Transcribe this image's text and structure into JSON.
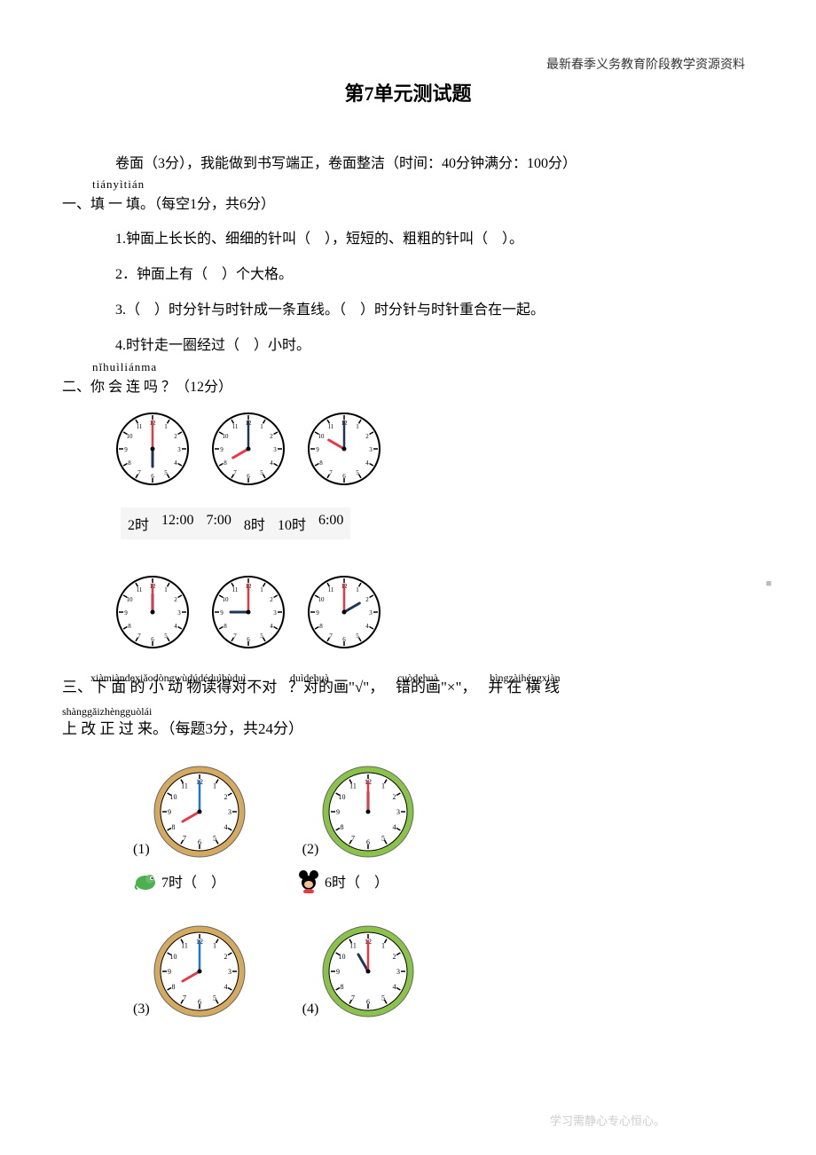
{
  "header_note": "最新春季义务教育阶段教学资源资料",
  "title": "第7单元测试题",
  "intro": "卷面（3分），我能做到书写端正，卷面整洁（时间：40分钟满分：100分）",
  "section1": {
    "pinyin": "tiányìtián",
    "heading": "一、填 一 填。（每空1分，共6分）",
    "q1": "1.钟面上长长的、细细的针叫（　），短短的、粗粗的针叫（　）。",
    "q2": "2．钟面上有（　）个大格。",
    "q3": "3.（　）时分针与时针成一条直线。（　）时分针与时针重合在一起。",
    "q4": "4.时针走一圈经过（　）小时。"
  },
  "section2": {
    "pinyin": "nǐhuìliánma",
    "heading": "二、你 会 连 吗 ？（12分）",
    "clocks_row1": [
      {
        "hour": 6,
        "minute": 0,
        "minute_color": "#e63946",
        "hour_color": "#1d3557"
      },
      {
        "hour": 8,
        "minute": 0,
        "minute_color": "#1d3557",
        "hour_color": "#e63946"
      },
      {
        "hour": 10,
        "minute": 0,
        "minute_color": "#1d3557",
        "hour_color": "#e63946"
      }
    ],
    "time_labels": [
      "2时",
      "12:00",
      "7:00",
      "8时",
      "10时",
      "6:00"
    ],
    "clocks_row2": [
      {
        "hour": 12,
        "minute": 0,
        "minute_color": "#e63946",
        "hour_color": "#1d3557"
      },
      {
        "hour": 9,
        "minute": 0,
        "minute_color": "#e63946",
        "hour_color": "#1d3557"
      },
      {
        "hour": 2,
        "minute": 0,
        "minute_color": "#e63946",
        "hour_color": "#1d3557"
      }
    ]
  },
  "section3": {
    "heading_parts": [
      {
        "pinyin": "xiàmiàndexiǎodòngwùdúdéduìbùduì",
        "text": "三、下 面 的 小 动 物读得对不对"
      },
      {
        "pinyin": "duìdehuà",
        "text": "？对的画\"√\"，"
      },
      {
        "pinyin": "cuòdehuà",
        "text": "错的画\"×\"，"
      },
      {
        "pinyin": "bìngzàihéngxiàn",
        "text": "并 在 横 线"
      }
    ],
    "line2_pinyin": "shànggǎizhèngguòlái",
    "line2_text": "上 改 正 过 来。（每题3分，共24分）",
    "items": [
      {
        "num": "(1)",
        "clock": {
          "hour": 8,
          "minute": 0,
          "rim": "#d4a960",
          "minute_color": "#1976d2",
          "hour_color": "#e63946"
        },
        "answer_label": "7时（　）",
        "animal_type": "chameleon"
      },
      {
        "num": "(2)",
        "clock": {
          "hour": 12,
          "minute": 0,
          "rim": "#8bc34a",
          "minute_color": "#e63946",
          "hour_color": "#1d3557"
        },
        "answer_label": "6时（　）",
        "animal_type": "mickey"
      },
      {
        "num": "(3)",
        "clock": {
          "hour": 8,
          "minute": 0,
          "rim": "#d4a960",
          "minute_color": "#1976d2",
          "hour_color": "#e63946"
        }
      },
      {
        "num": "(4)",
        "clock": {
          "hour": 11,
          "minute": 0,
          "rim": "#8bc34a",
          "minute_color": "#e63946",
          "hour_color": "#1d3557"
        }
      }
    ]
  },
  "footer_note": "学习需静心专心恒心。",
  "clock_style": {
    "face_color": "#ffffff",
    "border_color": "#000000",
    "tick_color": "#000000",
    "number_fontsize": 7,
    "large_number_fontsize": 8
  }
}
